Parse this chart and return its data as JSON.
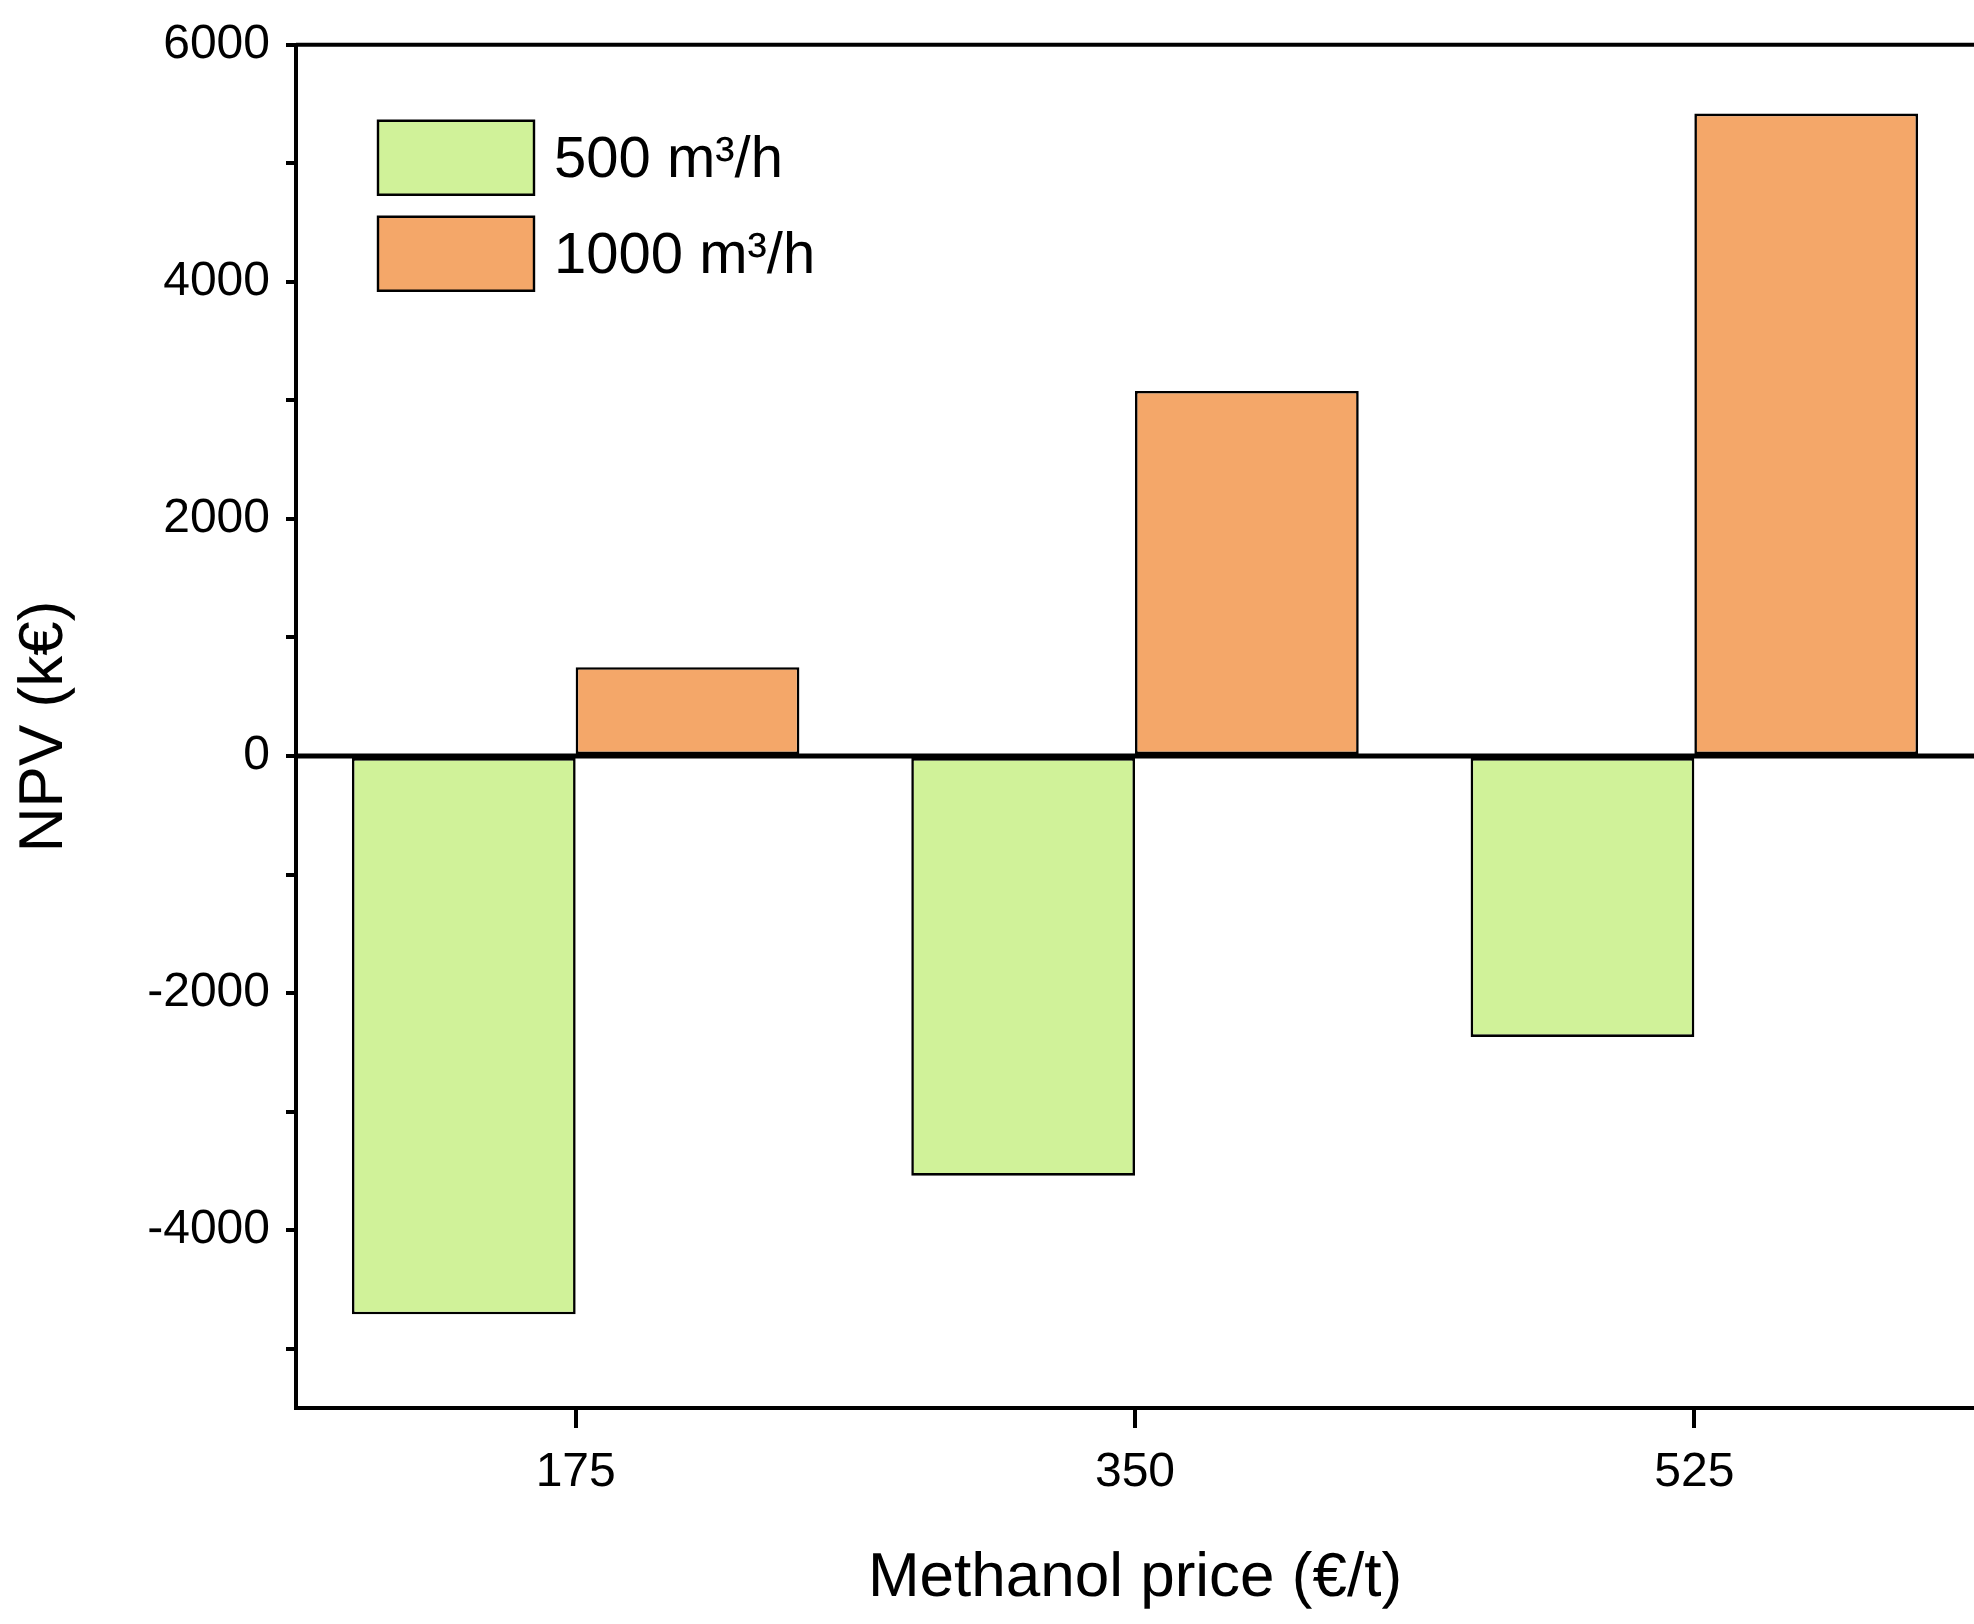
{
  "chart_data": {
    "type": "bar",
    "xlabel": "Methanol price (€/t)",
    "ylabel": "NPV (k€)",
    "categories": [
      "175",
      "350",
      "525"
    ],
    "series": [
      {
        "name": "500 m³/h",
        "color": "#d0f299",
        "values": [
          -4710,
          -3540,
          -2370
        ]
      },
      {
        "name": "1000 m³/h",
        "color": "#f4a769",
        "values": [
          750,
          3080,
          5420
        ]
      }
    ],
    "ylim": [
      -5500,
      6000
    ],
    "yticks": [
      {
        "value": -5000,
        "label": null
      },
      -4000,
      {
        "value": -3000,
        "label": null
      },
      -2000,
      {
        "value": -1000,
        "label": null
      },
      0,
      {
        "value": 1000,
        "label": null
      },
      2000,
      {
        "value": 3000,
        "label": null
      },
      4000,
      {
        "value": 5000,
        "label": null
      },
      6000
    ],
    "ref_lines": [
      {
        "axis": "y",
        "value": 0,
        "label": null,
        "color": "#000000"
      }
    ],
    "grid": false,
    "legend": "top left"
  }
}
